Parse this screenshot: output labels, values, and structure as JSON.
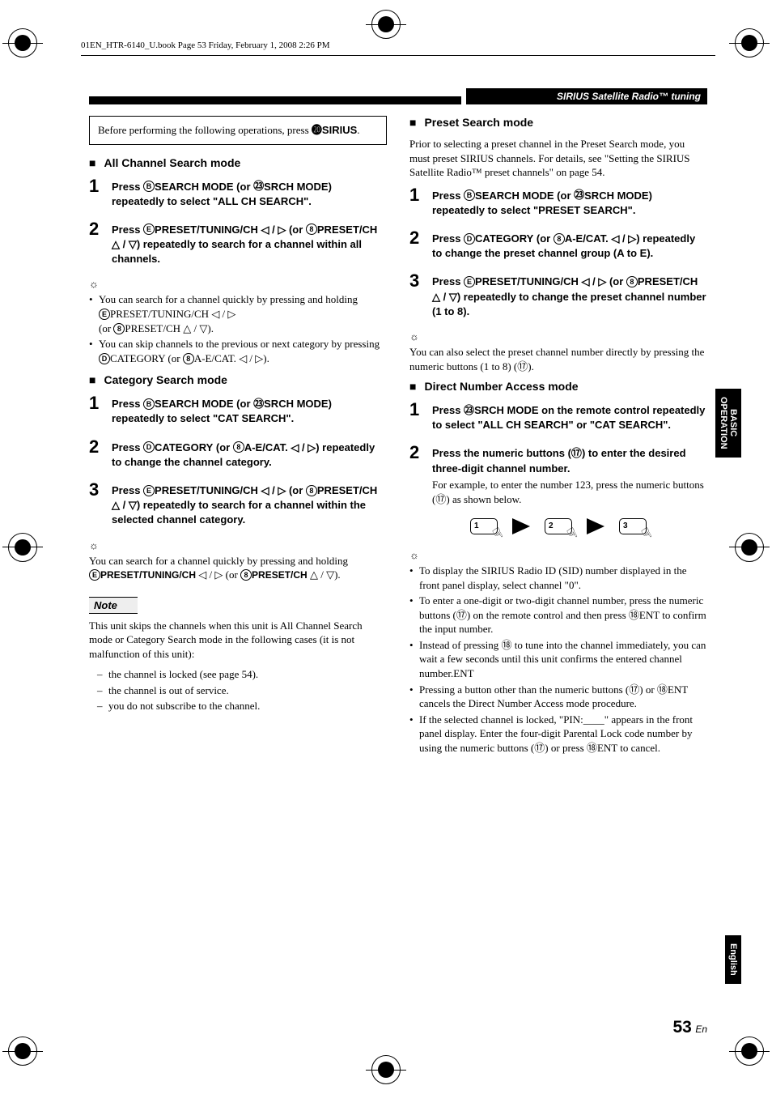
{
  "header_line": "01EN_HTR-6140_U.book  Page 53  Friday, February 1, 2008  2:26 PM",
  "section_title": "SIRIUS Satellite Radio™ tuning",
  "intro_box": "Before performing the following operations, press ⓴SIRIUS.",
  "sirius_label_prefix": "Before performing the following operations, press ",
  "sirius_ref": "⓴",
  "sirius_label_bold": "SIRIUS",
  "left": {
    "mode1_title": "All Channel Search mode",
    "m1_s1_a": "Press ",
    "m1_s1_ref1": "B",
    "m1_s1_b": "SEARCH MODE",
    "m1_s1_c": " (or ",
    "m1_s1_ref2": "㉓",
    "m1_s1_d": "SRCH MODE",
    "m1_s1_e": ") repeatedly to select \"ALL CH SEARCH\".",
    "m1_s2_a": "Press ",
    "m1_s2_ref1": "E",
    "m1_s2_b": "PRESET/TUNING/CH",
    "m1_s2_c": " ◁ / ▷ (or ",
    "m1_s2_ref2": "8",
    "m1_s2_d": "PRESET/CH",
    "m1_s2_e": " △ / ▽) repeatedly to search for a channel within all channels.",
    "tip1_l1": "You can search for a channel quickly by pressing and holding ",
    "tip1_l2_ref": "E",
    "tip1_l2_b": "PRESET/TUNING/CH",
    "tip1_l2_c": " ◁ / ▷",
    "tip1_l3_a": "(or ",
    "tip1_l3_ref": "8",
    "tip1_l3_b": "PRESET/CH",
    "tip1_l3_c": " △ / ▽).",
    "tip1_b2_a": "You can skip channels to the previous or next category by pressing ",
    "tip1_b2_ref1": "D",
    "tip1_b2_b": "CATEGORY",
    "tip1_b2_c": " (or ",
    "tip1_b2_ref2": "8",
    "tip1_b2_d": "A-E/CAT.",
    "tip1_b2_e": " ◁ / ▷).",
    "mode2_title": "Category Search mode",
    "m2_s1_a": "Press ",
    "m2_s1_ref1": "B",
    "m2_s1_b": "SEARCH MODE",
    "m2_s1_c": " (or ",
    "m2_s1_ref2": "㉓",
    "m2_s1_d": "SRCH MODE",
    "m2_s1_e": ") repeatedly to select \"CAT SEARCH\".",
    "m2_s2_a": "Press ",
    "m2_s2_ref1": "D",
    "m2_s2_b": "CATEGORY",
    "m2_s2_c": " (or ",
    "m2_s2_ref2": "8",
    "m2_s2_d": "A-E/CAT.",
    "m2_s2_e": " ◁ / ▷) repeatedly to change the channel category.",
    "m2_s3_a": "Press ",
    "m2_s3_ref1": "E",
    "m2_s3_b": "PRESET/TUNING/CH",
    "m2_s3_c": " ◁ / ▷ (or ",
    "m2_s3_ref2": "8",
    "m2_s3_d": "PRESET/CH",
    "m2_s3_e": " △ / ▽) repeatedly to search for a channel within the selected channel category.",
    "tip2": "You can search for a channel quickly by pressing and holding ",
    "tip2_ref1": "E",
    "tip2_b1": "PRESET/TUNING/CH",
    "tip2_c1": " ◁ / ▷ (or ",
    "tip2_ref2": "8",
    "tip2_b2": "PRESET/CH",
    "tip2_c2": " △ / ▽).",
    "note_label": "Note",
    "note_intro": "This unit skips the channels when this unit is All Channel Search mode or Category Search mode in the following cases (it is not malfunction of this unit):",
    "note_d1": "the channel is locked (see page 54).",
    "note_d2": "the channel is out of service.",
    "note_d3": "you do not subscribe to the channel."
  },
  "right": {
    "mode3_title": "Preset Search mode",
    "mode3_intro": "Prior to selecting a preset channel in the Preset Search mode, you must preset SIRIUS channels. For details, see \"Setting the SIRIUS Satellite Radio™ preset channels\" on page 54.",
    "m3_s1_a": "Press ",
    "m3_s1_ref1": "B",
    "m3_s1_b": "SEARCH MODE",
    "m3_s1_c": " (or ",
    "m3_s1_ref2": "㉓",
    "m3_s1_d": "SRCH MODE",
    "m3_s1_e": ") repeatedly to select \"PRESET SEARCH\".",
    "m3_s2_a": "Press ",
    "m3_s2_ref1": "D",
    "m3_s2_b": "CATEGORY",
    "m3_s2_c": " (or ",
    "m3_s2_ref2": "8",
    "m3_s2_d": "A-E/CAT.",
    "m3_s2_e": " ◁ / ▷) repeatedly to change the preset channel group (A to E).",
    "m3_s3_a": "Press ",
    "m3_s3_ref1": "E",
    "m3_s3_b": "PRESET/TUNING/CH",
    "m3_s3_c": " ◁ / ▷ (or ",
    "m3_s3_ref2": "8",
    "m3_s3_d": "PRESET/CH",
    "m3_s3_e": " △ / ▽) repeatedly to change the preset channel number (1 to 8).",
    "tip3_a": "You can also select the preset channel number directly by pressing the numeric buttons (1 to 8) (",
    "tip3_ref": "⑰",
    "tip3_c": ").",
    "mode4_title": "Direct Number Access mode",
    "m4_s1_a": "Press ",
    "m4_s1_ref": "㉓",
    "m4_s1_b": "SRCH MODE",
    "m4_s1_c": " on the remote control repeatedly to select \"ALL CH SEARCH\" or \"CAT SEARCH\".",
    "m4_s2_a": "Press the numeric buttons (",
    "m4_s2_ref": "⑰",
    "m4_s2_c": ") to enter the desired three-digit channel number.",
    "m4_s2_serif_a": "For example, to enter the number 123, press the numeric buttons (",
    "m4_s2_serif_ref": "⑰",
    "m4_s2_serif_c": ") as shown below.",
    "key1": "1",
    "key2": "2",
    "key3": "3",
    "tips4": [
      {
        "a": "To display the SIRIUS Radio ID (SID) number displayed in the front panel display, select channel \"0\"."
      },
      {
        "a": "To enter a one-digit or two-digit channel number, press the numeric buttons (",
        "ref": "⑰",
        "b": ") on the remote control and then press ",
        "ref2": "⑱",
        "bold": "ENT",
        "c": " to confirm the input number."
      },
      {
        "a": "Instead of pressing ",
        "ref": "⑱",
        "bold": "ENT",
        "b": " to tune into the channel immediately, you can wait a few seconds until this unit confirms the entered channel number."
      },
      {
        "a": "Pressing a button other than the numeric buttons (",
        "ref": "⑰",
        "b": ") or ",
        "ref2": "⑱",
        "bold": "ENT",
        "c": " cancels the Direct Number Access mode procedure."
      },
      {
        "a": "If the selected channel is locked, \"PIN:____\" appears in the front panel display. Enter the four-digit Parental Lock code number by using the numeric buttons (",
        "ref": "⑰",
        "b": ") or press ",
        "ref2": "⑱",
        "bold": "ENT",
        "c": " to cancel."
      }
    ]
  },
  "side_tab_operation": "BASIC OPERATION",
  "side_tab_english": "English",
  "page_number": "53",
  "page_lang": "En"
}
